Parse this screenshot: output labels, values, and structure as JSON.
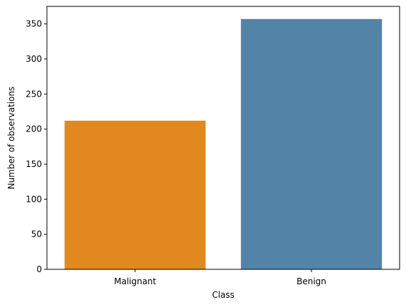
{
  "chart_data": {
    "type": "bar",
    "categories": [
      "Malignant",
      "Benign"
    ],
    "values": [
      212,
      357
    ],
    "colors": [
      "#e1891e",
      "#5483a8"
    ],
    "title": "",
    "xlabel": "Class",
    "ylabel": "Number of observations",
    "ylim": [
      0,
      375
    ],
    "yticks": [
      0,
      50,
      100,
      150,
      200,
      250,
      300,
      350
    ],
    "grid": false,
    "legend": "none"
  }
}
